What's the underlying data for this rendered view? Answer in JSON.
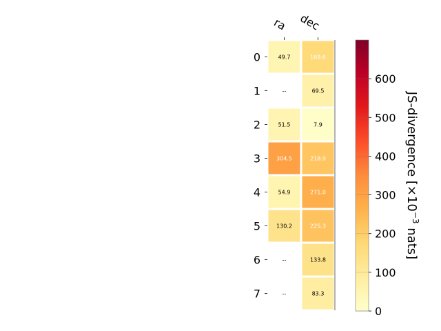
{
  "chart_data": {
    "type": "heatmap",
    "columns": [
      "ra",
      "dec"
    ],
    "rows": [
      "0",
      "1",
      "2",
      "3",
      "4",
      "5",
      "6",
      "7"
    ],
    "values": [
      [
        49.7,
        169.6
      ],
      [
        null,
        69.5
      ],
      [
        51.5,
        7.9
      ],
      [
        304.5,
        218.9
      ],
      [
        54.9,
        271.0
      ],
      [
        130.2,
        225.3
      ],
      [
        null,
        133.8
      ],
      [
        null,
        83.3
      ]
    ],
    "cell_labels": [
      [
        "49.7",
        "169.6"
      ],
      [
        "--",
        "69.5"
      ],
      [
        "51.5",
        "7.9"
      ],
      [
        "304.5",
        "218.9"
      ],
      [
        "54.9",
        "271.0"
      ],
      [
        "130.2",
        "225.3"
      ],
      [
        "--",
        "133.8"
      ],
      [
        "--",
        "83.3"
      ]
    ],
    "colorbar": {
      "label_prefix": "JS-divergence [×10",
      "label_exponent": "−3",
      "label_suffix": " nats]",
      "vmin": 0,
      "vmax": 700,
      "ticks": [
        "0",
        "100",
        "200",
        "300",
        "400",
        "500",
        "600"
      ],
      "colormap": "YlOrRd",
      "colormap_stops": [
        "#ffffcc",
        "#ffeda0",
        "#fed976",
        "#feb24c",
        "#fd8d3c",
        "#fc4e2a",
        "#e31a1c",
        "#bd0026",
        "#800026"
      ]
    }
  }
}
